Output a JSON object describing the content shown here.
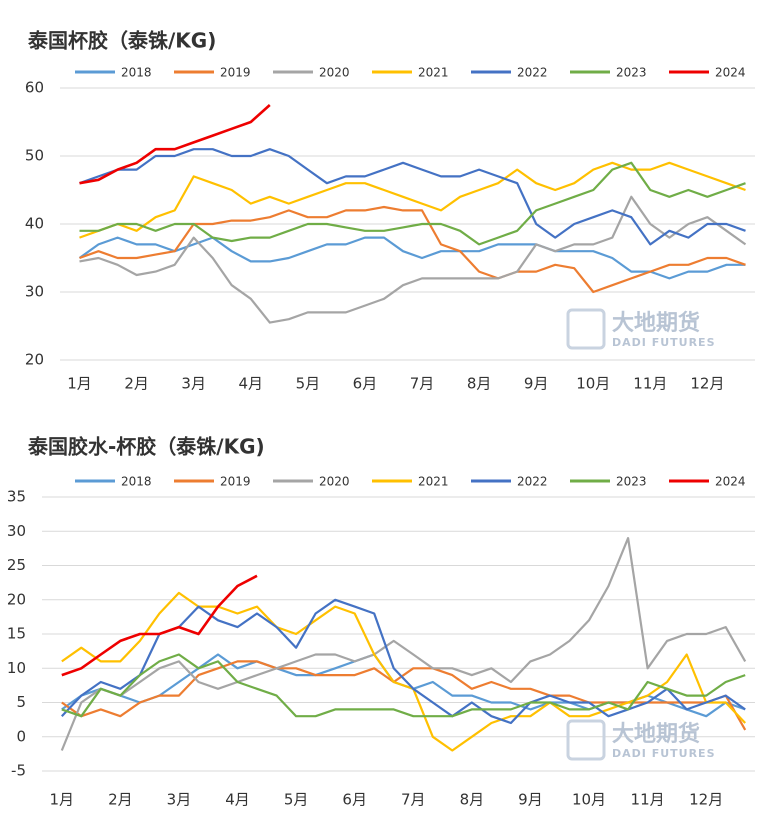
{
  "chart_data": [
    {
      "type": "line",
      "title": "泰国杯胶（泰铢/KG)",
      "watermark": "大地期货",
      "watermark_sub": "DADI FUTURES",
      "categories": [
        "1月",
        null,
        null,
        "2月",
        null,
        null,
        "3月",
        null,
        null,
        "4月",
        null,
        null,
        "5月",
        null,
        null,
        "6月",
        null,
        null,
        "7月",
        null,
        null,
        "8月",
        null,
        null,
        "9月",
        null,
        null,
        "10月",
        null,
        null,
        "11月",
        null,
        null,
        "12月",
        null,
        null
      ],
      "ylim": [
        20,
        60
      ],
      "yticks": [
        20,
        30,
        40,
        50,
        60
      ],
      "grid": true,
      "series": [
        {
          "name": "2018",
          "color": "#5b9bd5",
          "values": [
            35,
            37,
            38,
            37,
            37,
            36,
            37,
            38,
            36,
            34.5,
            34.5,
            35,
            36,
            37,
            37,
            38,
            38,
            36,
            35,
            36,
            36,
            36,
            37,
            37,
            37,
            36,
            36,
            36,
            35,
            33,
            33,
            32,
            33,
            33,
            34,
            34
          ]
        },
        {
          "name": "2019",
          "color": "#ed7d31",
          "values": [
            35,
            36,
            35,
            35,
            35.5,
            36,
            40,
            40,
            40.5,
            40.5,
            41,
            42,
            41,
            41,
            42,
            42,
            42.5,
            42,
            42,
            37,
            36,
            33,
            32,
            33,
            33,
            34,
            33.5,
            30,
            31,
            32,
            33,
            34,
            34,
            35,
            35,
            34
          ]
        },
        {
          "name": "2020",
          "color": "#a5a5a5",
          "values": [
            34.5,
            35,
            34,
            32.5,
            33,
            34,
            38,
            35,
            31,
            29,
            25.5,
            26,
            27,
            27,
            27,
            28,
            29,
            31,
            32,
            32,
            32,
            32,
            32,
            33,
            37,
            36,
            37,
            37,
            38,
            44,
            40,
            38,
            40,
            41,
            39,
            37
          ]
        },
        {
          "name": "2021",
          "color": "#ffc000",
          "values": [
            38,
            39,
            40,
            39,
            41,
            42,
            47,
            46,
            45,
            43,
            44,
            43,
            44,
            45,
            46,
            46,
            45,
            44,
            43,
            42,
            44,
            45,
            46,
            48,
            46,
            45,
            46,
            48,
            49,
            48,
            48,
            49,
            48,
            47,
            46,
            45
          ]
        },
        {
          "name": "2022",
          "color": "#4472c4",
          "values": [
            46,
            47,
            48,
            48,
            50,
            50,
            51,
            51,
            50,
            50,
            51,
            50,
            48,
            46,
            47,
            47,
            48,
            49,
            48,
            47,
            47,
            48,
            47,
            46,
            40,
            38,
            40,
            41,
            42,
            41,
            37,
            39,
            38,
            40,
            40,
            39
          ]
        },
        {
          "name": "2023",
          "color": "#70ad47",
          "values": [
            39,
            39,
            40,
            40,
            39,
            40,
            40,
            38,
            37.5,
            38,
            38,
            39,
            40,
            40,
            39.5,
            39,
            39,
            39.5,
            40,
            40,
            39,
            37,
            38,
            39,
            42,
            43,
            44,
            45,
            48,
            49,
            45,
            44,
            45,
            44,
            45,
            46
          ]
        },
        {
          "name": "2024",
          "color": "#ee0000",
          "values": [
            46,
            46.5,
            48,
            49,
            51,
            51,
            52,
            53,
            54,
            55,
            57.5,
            null,
            null,
            null,
            null,
            null,
            null,
            null,
            null,
            null,
            null,
            null,
            null,
            null,
            null,
            null,
            null,
            null,
            null,
            null,
            null,
            null,
            null,
            null,
            null,
            null
          ]
        }
      ]
    },
    {
      "type": "line",
      "title": "泰国胶水-杯胶（泰铢/KG)",
      "watermark": "大地期货",
      "watermark_sub": "DADI FUTURES",
      "categories": [
        "1月",
        null,
        null,
        "2月",
        null,
        null,
        "3月",
        null,
        null,
        "4月",
        null,
        null,
        "5月",
        null,
        null,
        "6月",
        null,
        null,
        "7月",
        null,
        null,
        "8月",
        null,
        null,
        "9月",
        null,
        null,
        "10月",
        null,
        null,
        "11月",
        null,
        null,
        "12月",
        null,
        null
      ],
      "ylim": [
        -5,
        35
      ],
      "yticks": [
        -5,
        0,
        5,
        10,
        15,
        20,
        25,
        30,
        35
      ],
      "grid": true,
      "series": [
        {
          "name": "2018",
          "color": "#5b9bd5",
          "values": [
            4,
            6,
            7,
            6,
            5,
            6,
            8,
            10,
            12,
            10,
            11,
            10,
            9,
            9,
            10,
            11,
            12,
            8,
            7,
            8,
            6,
            6,
            5,
            5,
            4,
            5,
            5,
            4,
            5,
            5,
            6,
            5,
            4,
            3,
            5,
            4
          ]
        },
        {
          "name": "2019",
          "color": "#ed7d31",
          "values": [
            5,
            3,
            4,
            3,
            5,
            6,
            6,
            9,
            10,
            11,
            11,
            10,
            10,
            9,
            9,
            9,
            10,
            8,
            10,
            10,
            9,
            7,
            8,
            7,
            7,
            6,
            6,
            5,
            5,
            5,
            5,
            5,
            5,
            5,
            6,
            1
          ]
        },
        {
          "name": "2020",
          "color": "#a5a5a5",
          "values": [
            -2,
            5,
            7,
            6,
            8,
            10,
            11,
            8,
            7,
            8,
            9,
            10,
            11,
            12,
            12,
            11,
            12,
            14,
            12,
            10,
            10,
            9,
            10,
            8,
            11,
            12,
            14,
            17,
            22,
            29,
            10,
            14,
            15,
            15,
            16,
            11
          ]
        },
        {
          "name": "2021",
          "color": "#ffc000",
          "values": [
            11,
            13,
            11,
            11,
            14,
            18,
            21,
            19,
            19,
            18,
            19,
            16,
            15,
            17,
            19,
            18,
            12,
            8,
            7,
            0,
            -2,
            0,
            2,
            3,
            3,
            5,
            3,
            3,
            4,
            5,
            6,
            8,
            12,
            5,
            5,
            2
          ]
        },
        {
          "name": "2022",
          "color": "#4472c4",
          "values": [
            3,
            6,
            8,
            7,
            9,
            15,
            16,
            19,
            17,
            16,
            18,
            16,
            13,
            18,
            20,
            19,
            18,
            10,
            7,
            5,
            3,
            5,
            3,
            2,
            5,
            6,
            5,
            5,
            3,
            4,
            5,
            7,
            4,
            5,
            6,
            4
          ]
        },
        {
          "name": "2023",
          "color": "#70ad47",
          "values": [
            4,
            3,
            7,
            6,
            9,
            11,
            12,
            10,
            11,
            8,
            7,
            6,
            3,
            3,
            4,
            4,
            4,
            4,
            3,
            3,
            3,
            4,
            4,
            4,
            5,
            5,
            4,
            4,
            5,
            4,
            8,
            7,
            6,
            6,
            8,
            9
          ]
        },
        {
          "name": "2024",
          "color": "#ee0000",
          "values": [
            9,
            10,
            12,
            14,
            15,
            15,
            16,
            15,
            19,
            22,
            23.5,
            null,
            null,
            null,
            null,
            null,
            null,
            null,
            null,
            null,
            null,
            null,
            null,
            null,
            null,
            null,
            null,
            null,
            null,
            null,
            null,
            null,
            null,
            null,
            null,
            null
          ]
        }
      ]
    }
  ]
}
